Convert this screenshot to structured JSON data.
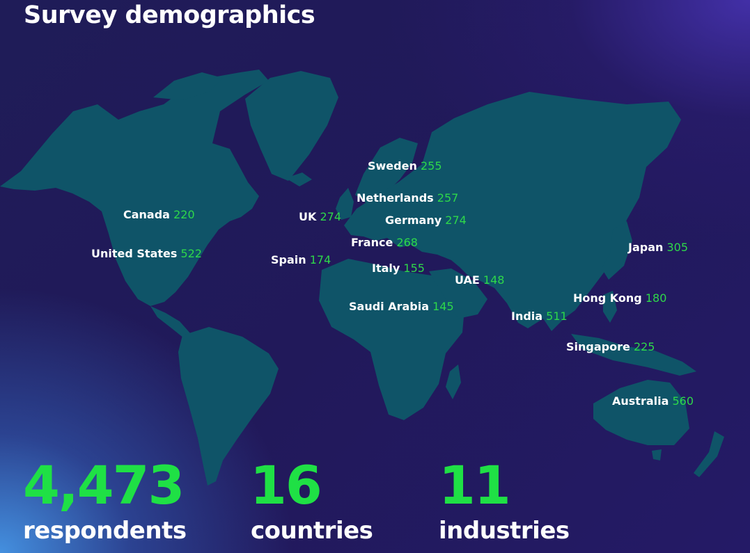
{
  "title": "Survey demographics",
  "colors": {
    "accent": "#1fe045",
    "land": "#0f5468",
    "background": "#21195a",
    "text": "#ffffff"
  },
  "countries": [
    {
      "name": "Canada",
      "value": "220"
    },
    {
      "name": "United States",
      "value": "522"
    },
    {
      "name": "UK",
      "value": "274"
    },
    {
      "name": "Spain",
      "value": "174"
    },
    {
      "name": "Sweden",
      "value": "255"
    },
    {
      "name": "Netherlands",
      "value": "257"
    },
    {
      "name": "Germany",
      "value": "274"
    },
    {
      "name": "France",
      "value": "268"
    },
    {
      "name": "Italy",
      "value": "155"
    },
    {
      "name": "Saudi Arabia",
      "value": "145"
    },
    {
      "name": "UAE",
      "value": "148"
    },
    {
      "name": "India",
      "value": "511"
    },
    {
      "name": "Japan",
      "value": "305"
    },
    {
      "name": "Hong Kong",
      "value": "180"
    },
    {
      "name": "Singapore",
      "value": "225"
    },
    {
      "name": "Australia",
      "value": "560"
    }
  ],
  "stats": [
    {
      "value": "4,473",
      "label": "respondents"
    },
    {
      "value": "16",
      "label": "countries"
    },
    {
      "value": "11",
      "label": "industries"
    }
  ]
}
